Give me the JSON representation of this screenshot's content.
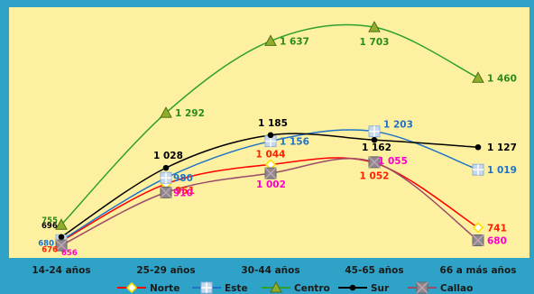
{
  "chart_data": {
    "type": "line",
    "title": "",
    "xlabel": "",
    "ylabel": "",
    "categories": [
      "14-24 años",
      "25-29 años",
      "30-44 años",
      "45-65 años",
      "66 a más años"
    ],
    "ylim": [
      600,
      1760
    ],
    "grid": false,
    "legend_position": "bottom",
    "background_color": "#fdf0a0",
    "frame_color": "#2fa3c7",
    "series": [
      {
        "name": "Norte",
        "color": "#ff0000",
        "marker": "diamond",
        "marker_color": "#ffe000",
        "values": [
          676,
          951,
          1044,
          1052,
          741
        ],
        "labels": [
          "676",
          "951",
          "1 044",
          "1 052",
          "741"
        ],
        "label_color": "#ff2200"
      },
      {
        "name": "Este",
        "color": "#1e73c8",
        "marker": "square-plus",
        "marker_color": "#c8d8ee",
        "values": [
          680,
          980,
          1156,
          1203,
          1019
        ],
        "labels": [
          "680",
          "980",
          "1 156",
          "1 203",
          "1 019"
        ],
        "label_color": "#1e73c8"
      },
      {
        "name": "Centro",
        "color": "#2ea02e",
        "marker": "triangle",
        "marker_color": "#8fae2e",
        "values": [
          755,
          1292,
          1637,
          1703,
          1460
        ],
        "labels": [
          "755",
          "1 292",
          "1 637",
          "1 703",
          "1 460"
        ],
        "label_color": "#2a8a1a"
      },
      {
        "name": "Sur",
        "color": "#000000",
        "marker": "circle",
        "marker_color": "#000000",
        "values": [
          696,
          1028,
          1185,
          1162,
          1127
        ],
        "labels": [
          "696",
          "1 028",
          "1 185",
          "1 162",
          "1 127"
        ],
        "label_color": "#000000"
      },
      {
        "name": "Callao",
        "color": "#9c4a6a",
        "marker": "square-x",
        "marker_color": "#8a8a8a",
        "values": [
          656,
          910,
          1002,
          1055,
          680
        ],
        "labels": [
          "656",
          "910",
          "1 002",
          "1 055",
          "680"
        ],
        "label_color": "#ff00cc"
      }
    ]
  }
}
